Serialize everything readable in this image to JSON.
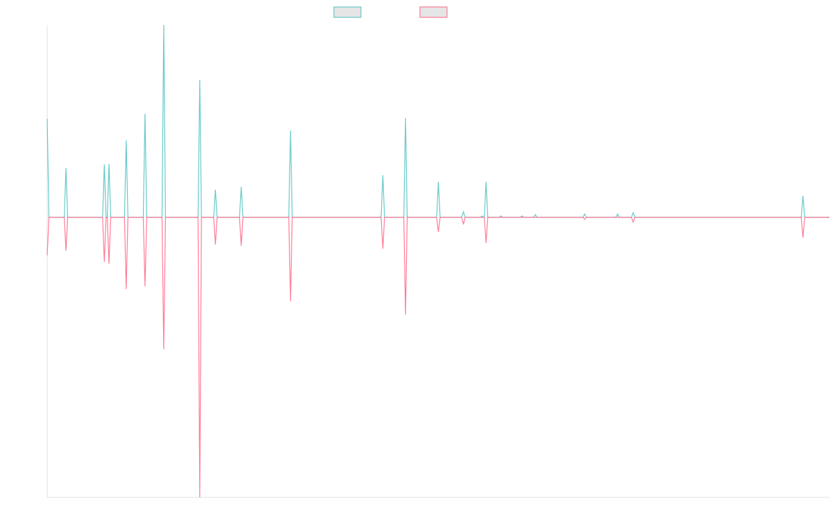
{
  "chart_data": {
    "type": "line",
    "title": "",
    "xlabel": "",
    "ylabel": "",
    "xlim": [
      0,
      100
    ],
    "ylim": [
      -100,
      68.7
    ],
    "grid": false,
    "legend_placement": "top",
    "x": [
      0,
      2.4,
      7.3,
      7.9,
      10.1,
      12.5,
      14.9,
      19.5,
      21.5,
      24.8,
      31.1,
      42.9,
      45.8,
      50.0,
      53.2,
      55.6,
      56.1,
      58.0,
      60.7,
      62.4,
      68.7,
      72.9,
      74.9,
      96.6
    ],
    "series": [
      {
        "color": "#4bc0c0",
        "legend_fill": "#e5e5e5",
        "values": [
          35.2,
          17.6,
          18.9,
          19.1,
          27.5,
          37.0,
          68.7,
          49.1,
          9.9,
          10.9,
          31.0,
          15.1,
          35.5,
          12.7,
          2.0,
          0.5,
          12.7,
          0.5,
          0.5,
          1.0,
          1.2,
          1.2,
          1.7,
          7.7
        ]
      },
      {
        "color": "#ff6384",
        "legend_fill": "#e5e5e5",
        "values": [
          -13.6,
          -11.9,
          -15.9,
          -16.6,
          -25.6,
          -24.6,
          -47.1,
          -100,
          -9.7,
          -10.2,
          -30.0,
          -11.2,
          -34.7,
          -5.2,
          -2.5,
          0,
          -9.2,
          0,
          0,
          0,
          -0.7,
          0,
          -1.7,
          -7.2
        ]
      }
    ]
  }
}
